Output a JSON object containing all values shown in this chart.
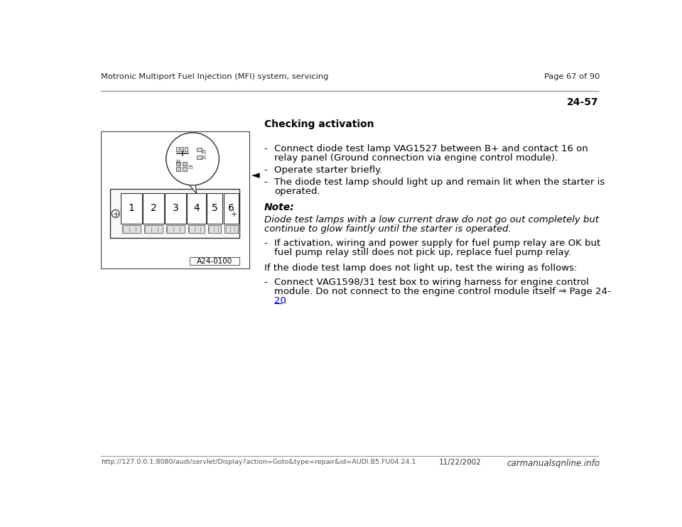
{
  "header_left": "Motronic Multiport Fuel Injection (MFI) system, servicing",
  "header_right": "Page 67 of 90",
  "section_number": "24-57",
  "section_title": "Checking activation",
  "bullet1_line1": "Connect diode test lamp VAG1527 between B+ and contact 16 on",
  "bullet1_line2": "relay panel (Ground connection via engine control module).",
  "bullet2": "Operate starter briefly.",
  "bullet3_line1": "The diode test lamp should light up and remain lit when the starter is",
  "bullet3_line2": "operated.",
  "note_label": "Note:",
  "note_line1": "Diode test lamps with a low current draw do not go out completely but",
  "note_line2": "continue to glow faintly until the starter is operated.",
  "sub_line1": "If activation, wiring and power supply for fuel pump relay are OK but",
  "sub_line2": "fuel pump relay still does not pick up, replace fuel pump relay.",
  "para_normal": "If the diode test lamp does not light up, test the wiring as follows:",
  "last_line1": "Connect VAG1598/31 test box to wiring harness for engine control",
  "last_line2": "module. Do not connect to the engine control module itself ⇒ Page 24-",
  "last_link": "20",
  "last_end": " .",
  "footer_left": "http://127.0.0.1:8080/audi/servlet/Display?action=Goto&type=repair&id=AUDI.B5.FU04.24.1",
  "footer_right": "carmanualsqnline.info",
  "footer_date": "11/22/2002",
  "bg_color": "#ffffff",
  "text_color": "#000000",
  "link_color": "#0000cc",
  "line_color": "#999999",
  "image_label": "A24-0100"
}
